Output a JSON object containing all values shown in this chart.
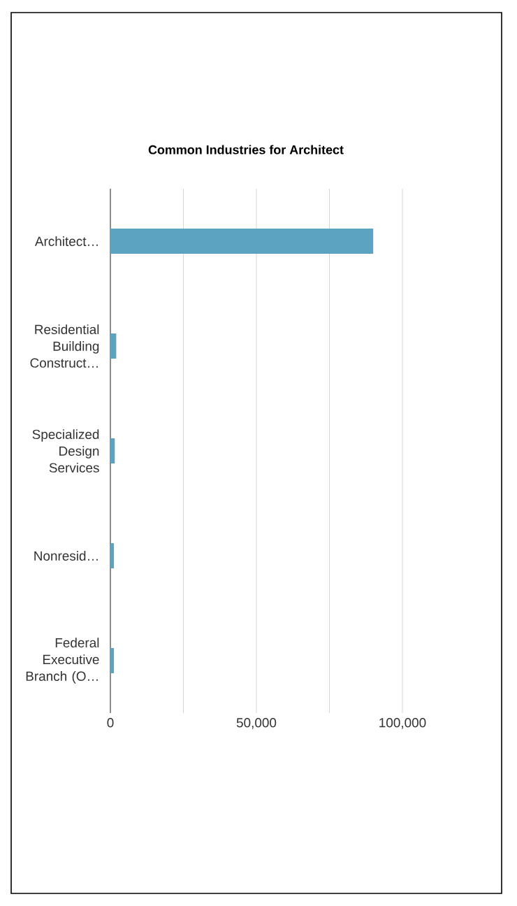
{
  "chart_data": {
    "type": "bar",
    "orientation": "horizontal",
    "title": "Common Industries for Architect",
    "categories": [
      "Architect…",
      "Residential Building Construct…",
      "Specialized Design Services",
      "Nonresid…",
      "Federal Executive Branch (O…"
    ],
    "values": [
      90000,
      2000,
      1500,
      1200,
      1200
    ],
    "color": "#5ba3c0",
    "xlim": [
      0,
      100000
    ],
    "xticks": [
      0,
      {
        "value": 25000,
        "label": null
      },
      {
        "value": 50000,
        "label": "50,000"
      },
      {
        "value": 75000,
        "label": null
      },
      {
        "value": 100000,
        "label": "100,000"
      }
    ],
    "grid": "x"
  }
}
